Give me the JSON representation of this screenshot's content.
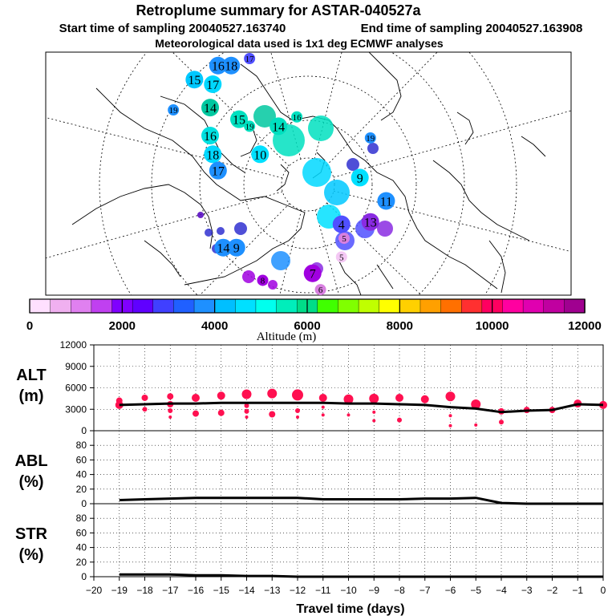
{
  "title": "Retroplume summary for ASTAR-040527a",
  "start_label": "Start time of sampling 20040527.163740",
  "end_label": "End time of sampling 20040527.163908",
  "met_label": "Meteorological data used is 1x1 deg ECMWF analyses",
  "map": {
    "labels": [
      {
        "t": "16",
        "lon": 0.328,
        "lat": 0.03,
        "c": "#1E90FF",
        "big": 1
      },
      {
        "t": "18",
        "lon": 0.353,
        "lat": 0.03,
        "c": "#1E90FF",
        "big": 1
      },
      {
        "t": "17",
        "lon": 0.388,
        "lat": 0.0,
        "c": "#5050FF",
        "big": 0
      },
      {
        "t": "15",
        "lon": 0.283,
        "lat": 0.09,
        "c": "#00C8FF",
        "big": 1
      },
      {
        "t": "17",
        "lon": 0.318,
        "lat": 0.11,
        "c": "#00D8FF",
        "big": 1
      },
      {
        "t": "19",
        "lon": 0.243,
        "lat": 0.22,
        "c": "#1E90FF",
        "big": 0
      },
      {
        "t": "14",
        "lon": 0.313,
        "lat": 0.21,
        "c": "#00C8A0",
        "big": 1
      },
      {
        "t": "15",
        "lon": 0.368,
        "lat": 0.26,
        "c": "#00E0C0",
        "big": 1
      },
      {
        "t": "19",
        "lon": 0.388,
        "lat": 0.29,
        "c": "#00E0C0",
        "big": 0
      },
      {
        "t": "14",
        "lon": 0.443,
        "lat": 0.29,
        "c": "#00E0C0",
        "big": 1
      },
      {
        "t": "16",
        "lon": 0.478,
        "lat": 0.25,
        "c": "#00E0C0",
        "big": 0
      },
      {
        "t": "16",
        "lon": 0.313,
        "lat": 0.33,
        "c": "#00E0E0",
        "big": 1
      },
      {
        "t": "19",
        "lon": 0.618,
        "lat": 0.34,
        "c": "#1E90FF",
        "big": 0
      },
      {
        "t": "18",
        "lon": 0.318,
        "lat": 0.41,
        "c": "#00D8FF",
        "big": 1
      },
      {
        "t": "10",
        "lon": 0.408,
        "lat": 0.41,
        "c": "#00E0FF",
        "big": 1
      },
      {
        "t": "17",
        "lon": 0.328,
        "lat": 0.48,
        "c": "#1E90FF",
        "big": 1
      },
      {
        "t": "9",
        "lon": 0.598,
        "lat": 0.51,
        "c": "#00E0FF",
        "big": 1
      },
      {
        "t": "11",
        "lon": 0.648,
        "lat": 0.61,
        "c": "#1E90FF",
        "big": 1
      },
      {
        "t": "13",
        "lon": 0.618,
        "lat": 0.7,
        "c": "#8A2BE2",
        "big": 1
      },
      {
        "t": "14",
        "lon": 0.338,
        "lat": 0.81,
        "c": "#1E90FF",
        "big": 1
      },
      {
        "t": "9",
        "lon": 0.363,
        "lat": 0.81,
        "c": "#1E90FF",
        "big": 1
      },
      {
        "t": "4",
        "lon": 0.563,
        "lat": 0.71,
        "c": "#5050FF",
        "big": 1
      },
      {
        "t": "5",
        "lon": 0.568,
        "lat": 0.77,
        "c": "#D880E0",
        "big": 0
      },
      {
        "t": "5",
        "lon": 0.563,
        "lat": 0.85,
        "c": "#F4C8F4",
        "big": 0
      },
      {
        "t": "7",
        "lon": 0.508,
        "lat": 0.92,
        "c": "#A000E0",
        "big": 1
      },
      {
        "t": "8",
        "lon": 0.413,
        "lat": 0.95,
        "c": "#A000E0",
        "big": 0
      },
      {
        "t": "6",
        "lon": 0.523,
        "lat": 0.99,
        "c": "#D880E0",
        "big": 0
      }
    ]
  },
  "colorbar": {
    "colors": [
      "#FFE0FF",
      "#F0B0F0",
      "#E080F0",
      "#C040F0",
      "#8000FF",
      "#6000FF",
      "#4040FF",
      "#2060FF",
      "#1E90FF",
      "#00BFFF",
      "#00E0FF",
      "#00FFEE",
      "#00EEBB",
      "#00DD88",
      "#40FF00",
      "#80FF00",
      "#C0FF00",
      "#FFFF00",
      "#FFD000",
      "#FFA000",
      "#FF7000",
      "#FF3030",
      "#FF0060",
      "#FF00A0",
      "#E000B0",
      "#C000A0",
      "#A00090"
    ],
    "tick_labels": [
      "0",
      "2000",
      "4000",
      "6000",
      "8000",
      "10000",
      "12000"
    ],
    "title": "Altitude (m)"
  },
  "chart_data": [
    {
      "type": "line",
      "name": "ALT",
      "ylabel_1": "ALT",
      "ylabel_2": "(m)",
      "ylim": [
        0,
        12000
      ],
      "yticks": [
        0,
        3000,
        6000,
        9000,
        12000
      ],
      "x": [
        -19,
        -18,
        -17,
        -16,
        -15,
        -14,
        -13,
        -12,
        -11,
        -10,
        -9,
        -8,
        -7,
        -6,
        -5,
        -4,
        -3,
        -2,
        -1,
        0
      ],
      "values": [
        3600,
        3700,
        3800,
        3800,
        3900,
        3900,
        3900,
        3900,
        3900,
        3800,
        3800,
        3700,
        3600,
        3300,
        3100,
        2600,
        2800,
        2900,
        3700,
        3600
      ],
      "points": [
        {
          "x": -19,
          "y": 4200,
          "s": 4
        },
        {
          "x": -19,
          "y": 3600,
          "s": 5
        },
        {
          "x": -18,
          "y": 4600,
          "s": 4
        },
        {
          "x": -18,
          "y": 3000,
          "s": 3
        },
        {
          "x": -17,
          "y": 4800,
          "s": 4
        },
        {
          "x": -17,
          "y": 3700,
          "s": 4
        },
        {
          "x": -17,
          "y": 2800,
          "s": 3
        },
        {
          "x": -17,
          "y": 1900,
          "s": 2
        },
        {
          "x": -16,
          "y": 4600,
          "s": 5
        },
        {
          "x": -16,
          "y": 2400,
          "s": 4
        },
        {
          "x": -15,
          "y": 4900,
          "s": 5
        },
        {
          "x": -15,
          "y": 2500,
          "s": 4
        },
        {
          "x": -14,
          "y": 5100,
          "s": 6
        },
        {
          "x": -14,
          "y": 3500,
          "s": 3
        },
        {
          "x": -14,
          "y": 2700,
          "s": 3
        },
        {
          "x": -14,
          "y": 1900,
          "s": 2
        },
        {
          "x": -13,
          "y": 5200,
          "s": 6
        },
        {
          "x": -13,
          "y": 2300,
          "s": 4
        },
        {
          "x": -12,
          "y": 5000,
          "s": 7
        },
        {
          "x": -12,
          "y": 2800,
          "s": 3
        },
        {
          "x": -12,
          "y": 1900,
          "s": 2
        },
        {
          "x": -11,
          "y": 4600,
          "s": 5
        },
        {
          "x": -11,
          "y": 3300,
          "s": 2
        },
        {
          "x": -11,
          "y": 2200,
          "s": 2
        },
        {
          "x": -10,
          "y": 4400,
          "s": 6
        },
        {
          "x": -10,
          "y": 2200,
          "s": 2
        },
        {
          "x": -9,
          "y": 4500,
          "s": 6
        },
        {
          "x": -9,
          "y": 2600,
          "s": 2
        },
        {
          "x": -9,
          "y": 1400,
          "s": 2
        },
        {
          "x": -8,
          "y": 4600,
          "s": 5
        },
        {
          "x": -8,
          "y": 1500,
          "s": 3
        },
        {
          "x": -7,
          "y": 4400,
          "s": 5
        },
        {
          "x": -6,
          "y": 4800,
          "s": 6
        },
        {
          "x": -6,
          "y": 2100,
          "s": 2
        },
        {
          "x": -6,
          "y": 700,
          "s": 2
        },
        {
          "x": -5,
          "y": 3700,
          "s": 6
        },
        {
          "x": -5,
          "y": 800,
          "s": 2
        },
        {
          "x": -4,
          "y": 2700,
          "s": 4
        },
        {
          "x": -4,
          "y": 1200,
          "s": 3
        },
        {
          "x": -3,
          "y": 2900,
          "s": 4
        },
        {
          "x": -2,
          "y": 2900,
          "s": 4
        },
        {
          "x": -1,
          "y": 3800,
          "s": 5
        },
        {
          "x": 0,
          "y": 3600,
          "s": 5
        }
      ]
    },
    {
      "type": "line",
      "name": "ABL",
      "ylabel_1": "ABL",
      "ylabel_2": "(%)",
      "ylim": [
        0,
        100
      ],
      "yticks": [
        0,
        20,
        40,
        60,
        80
      ],
      "x": [
        -19,
        -18,
        -17,
        -16,
        -15,
        -14,
        -13,
        -12,
        -11,
        -10,
        -9,
        -8,
        -7,
        -6,
        -5,
        -4,
        -3,
        -2,
        -1,
        0
      ],
      "values": [
        5,
        6,
        7,
        8,
        8,
        8,
        8,
        8,
        6,
        6,
        6,
        6,
        7,
        7,
        8,
        1,
        0,
        0,
        0,
        0
      ]
    },
    {
      "type": "line",
      "name": "STR",
      "ylabel_1": "STR",
      "ylabel_2": "(%)",
      "ylim": [
        0,
        100
      ],
      "yticks": [
        0,
        20,
        40,
        60,
        80
      ],
      "x": [
        -19,
        -18,
        -17,
        -16,
        -15,
        -14,
        -13,
        -12,
        -11,
        -10,
        -9,
        -8,
        -7,
        -6,
        -5,
        -4,
        -3,
        -2,
        -1,
        0
      ],
      "values": [
        3,
        3,
        3,
        2,
        2,
        1,
        1,
        0,
        0,
        0,
        0,
        0,
        0,
        0,
        0,
        0,
        0,
        0,
        0,
        0
      ]
    }
  ],
  "xaxis": {
    "label": "Travel time (days)",
    "range": [
      -20,
      0
    ],
    "ticks": [
      -20,
      -19,
      -18,
      -17,
      -16,
      -15,
      -14,
      -13,
      -12,
      -11,
      -10,
      -9,
      -8,
      -7,
      -6,
      -5,
      -4,
      -3,
      -2,
      -1,
      0
    ],
    "tick_labels": [
      "−20",
      "−19",
      "−18",
      "−17",
      "−16",
      "−15",
      "−14",
      "−13",
      "−12",
      "−11",
      "−10",
      "−9",
      "−8",
      "−7",
      "−6",
      "−5",
      "−4",
      "−3",
      "−2",
      "−1",
      "0"
    ]
  },
  "colors": {
    "series": "#000000",
    "points": "#FF1050"
  }
}
